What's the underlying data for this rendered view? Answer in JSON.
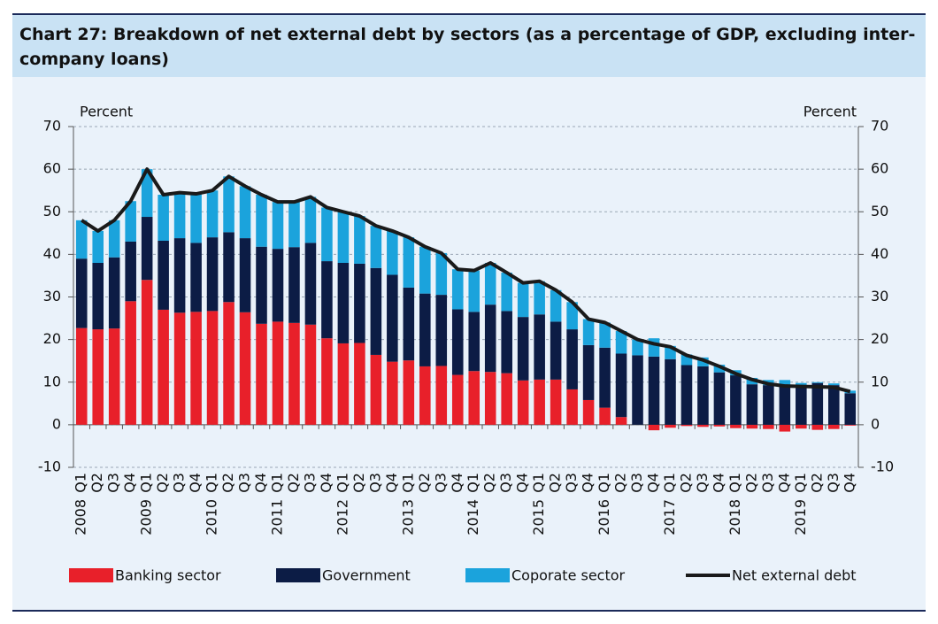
{
  "chart_data": {
    "type": "bar",
    "stacked": true,
    "title": "Chart 27: Breakdown of net external debt by sectors (as a percentage of GDP, excluding inter-company loans)",
    "y_label": "Percent",
    "y2_label": "Percent",
    "categories": [
      "Q1",
      "Q2",
      "Q3",
      "Q4",
      "Q1",
      "Q2",
      "Q3",
      "Q4",
      "Q1",
      "Q2",
      "Q3",
      "Q4",
      "Q1",
      "Q2",
      "Q3",
      "Q4",
      "Q1",
      "Q2",
      "Q3",
      "Q4",
      "Q1",
      "Q2",
      "Q3",
      "Q4",
      "Q1",
      "Q2",
      "Q3",
      "Q4",
      "Q1",
      "Q2",
      "Q3",
      "Q4",
      "Q1",
      "Q2",
      "Q3",
      "Q4",
      "Q1",
      "Q2",
      "Q3",
      "Q4",
      "Q1",
      "Q2",
      "Q3",
      "Q4",
      "Q1",
      "Q2",
      "Q3",
      "Q4"
    ],
    "years": [
      "2008",
      "2009",
      "2010",
      "2011",
      "2012",
      "2013",
      "2014",
      "2015",
      "2016",
      "2017",
      "2018",
      "2019"
    ],
    "series": [
      {
        "name": "Banking sector",
        "color": "#e8202a",
        "type": "bar",
        "values": [
          22.7,
          22.4,
          22.6,
          29,
          34,
          27,
          26.3,
          26.5,
          26.7,
          28.8,
          26.4,
          23.7,
          24.2,
          23.9,
          23.5,
          20.3,
          19.1,
          19.2,
          16.4,
          14.8,
          15.1,
          13.7,
          13.8,
          11.7,
          12.6,
          12.4,
          12.1,
          10.4,
          10.6,
          10.6,
          8.3,
          5.8,
          4,
          1.8,
          0,
          -1.3,
          -0.7,
          -0.3,
          -0.5,
          -0.4,
          -0.8,
          -0.9,
          -1,
          -1.6,
          -0.9,
          -1.2,
          -1,
          -0.2
        ]
      },
      {
        "name": "Government",
        "color": "#0c1c45",
        "type": "bar",
        "values": [
          16.3,
          15.6,
          16.7,
          14,
          14.8,
          16.2,
          17.5,
          16.2,
          17.3,
          16.4,
          17.4,
          18.1,
          17.1,
          17.8,
          19.2,
          18.1,
          18.9,
          18.6,
          20.4,
          20.4,
          17.1,
          17.1,
          16.7,
          15.4,
          13.9,
          15.8,
          14.6,
          14.9,
          15.3,
          13.6,
          14.1,
          12.9,
          14.1,
          14.9,
          16.3,
          16,
          15.4,
          14,
          13.7,
          12.3,
          11.6,
          9.5,
          9.3,
          9,
          9.2,
          9.8,
          9.3,
          7.4
        ]
      },
      {
        "name": "Coporate sector",
        "color": "#1ba3dc",
        "type": "bar",
        "values": [
          9,
          7.5,
          8.7,
          9.5,
          11.2,
          10.8,
          10.7,
          11.5,
          11,
          13.1,
          12.2,
          12.2,
          11,
          10.6,
          10.8,
          12.6,
          12,
          11.2,
          9.9,
          10.3,
          11.8,
          11,
          9.8,
          9.4,
          9.7,
          9.8,
          9,
          8,
          7.8,
          7.4,
          6.4,
          6.1,
          5.9,
          5.3,
          3.7,
          4.3,
          3.1,
          2.5,
          2.1,
          1.8,
          1.2,
          1.5,
          1.2,
          1.5,
          0.6,
          0.2,
          0.4,
          0.6
        ]
      },
      {
        "name": "Net external debt",
        "color": "#1a1a1a",
        "type": "line",
        "values": [
          48,
          45.5,
          48,
          52.5,
          60,
          54,
          54.5,
          54.2,
          55,
          58.3,
          56,
          54,
          52.3,
          52.3,
          53.5,
          51,
          50,
          49,
          46.7,
          45.5,
          44,
          41.8,
          40.3,
          36.5,
          36.2,
          38,
          35.7,
          33.3,
          33.7,
          31.6,
          28.8,
          24.8,
          24,
          22,
          20,
          19,
          18.3,
          16.3,
          15.2,
          13.7,
          12,
          10.6,
          9.6,
          9.1,
          9,
          8.9,
          8.8,
          7.8
        ]
      }
    ],
    "ylim": [
      -10,
      70
    ],
    "yticks": [
      -10,
      0,
      10,
      20,
      30,
      40,
      50,
      60,
      70
    ],
    "y2lim": [
      -10,
      70
    ],
    "y2ticks": [
      -10,
      0,
      10,
      20,
      30,
      40,
      50,
      60,
      70
    ],
    "grid": true,
    "legend": "bottom"
  }
}
